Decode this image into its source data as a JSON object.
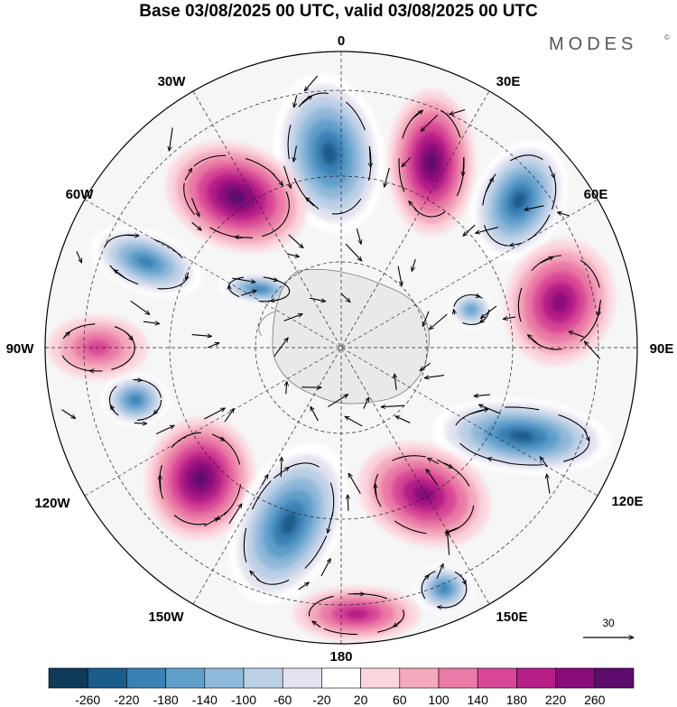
{
  "title": "Base 03/08/2025 00 UTC, valid 03/08/2025 00 UTC",
  "brand": {
    "name": "MODES",
    "mark": "©"
  },
  "longitude_labels": [
    {
      "id": "lon-0",
      "text": "0"
    },
    {
      "id": "lon-30e",
      "text": "30E"
    },
    {
      "id": "lon-60e",
      "text": "60E"
    },
    {
      "id": "lon-90e",
      "text": "90E"
    },
    {
      "id": "lon-120e",
      "text": "120E"
    },
    {
      "id": "lon-150e",
      "text": "150E"
    },
    {
      "id": "lon-180",
      "text": "180"
    },
    {
      "id": "lon-150w",
      "text": "150W"
    },
    {
      "id": "lon-120w",
      "text": "120W"
    },
    {
      "id": "lon-90w",
      "text": "90W"
    },
    {
      "id": "lon-60w",
      "text": "60W"
    },
    {
      "id": "lon-30w",
      "text": "30W"
    }
  ],
  "reference_vector": {
    "label": "30"
  },
  "colorbar": {
    "ticks": [
      "-260",
      "-220",
      "-180",
      "-140",
      "-100",
      "-60",
      "-20",
      "20",
      "60",
      "100",
      "140",
      "180",
      "220",
      "260"
    ],
    "colors": [
      "#0f3a5a",
      "#1a5c8a",
      "#3a81b5",
      "#5f9fca",
      "#8fb8da",
      "#bcd0e6",
      "#e3e3f0",
      "#ffffff",
      "#fbd6dd",
      "#f4a9bd",
      "#ea7aa6",
      "#d84796",
      "#b51f87",
      "#8a0c7b",
      "#5d0c6d"
    ]
  },
  "anomaly_centers": [
    {
      "name": "low-north",
      "value": -260
    },
    {
      "name": "high-northwest",
      "value": 260
    },
    {
      "name": "high-north-east",
      "value": 220
    },
    {
      "name": "low-northeast",
      "value": -220
    },
    {
      "name": "low-west",
      "value": -180
    },
    {
      "name": "low-west-inner",
      "value": -180
    },
    {
      "name": "high-east",
      "value": 180
    },
    {
      "name": "low-east-small",
      "value": -140
    },
    {
      "name": "low-southeast",
      "value": -260
    },
    {
      "name": "high-southwest",
      "value": 220
    },
    {
      "name": "low-south",
      "value": -260
    },
    {
      "name": "high-south-east",
      "value": 180
    },
    {
      "name": "low-far-southeast",
      "value": -180
    },
    {
      "name": "low-far-west",
      "value": -180
    },
    {
      "name": "high-west-edge",
      "value": 100
    },
    {
      "name": "high-south-rim",
      "value": 140
    }
  ]
}
